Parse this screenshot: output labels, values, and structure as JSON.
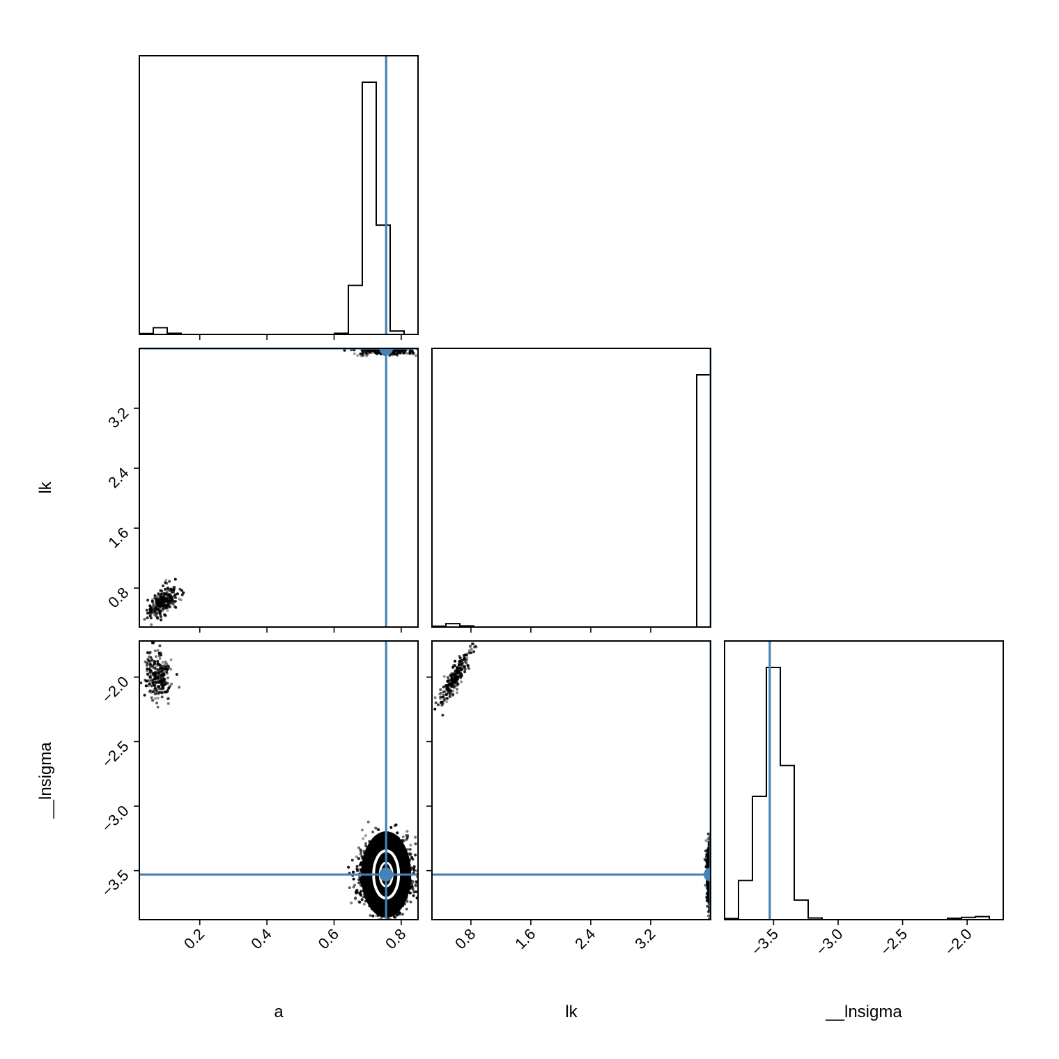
{
  "chart_data": {
    "type": "corner",
    "parameters": [
      "a",
      "lk",
      "__lnsigma"
    ],
    "truth_color": "#4682b4",
    "hist_color": "#000000",
    "truths": {
      "a": 0.755,
      "lk": 4.0,
      "__lnsigma": -3.53
    },
    "ranges": {
      "a": [
        0.02,
        0.85
      ],
      "lk": [
        0.28,
        4.0
      ],
      "__lnsigma": [
        -3.88,
        -1.72
      ]
    },
    "ticks": {
      "a": [
        0.2,
        0.4,
        0.6,
        0.8
      ],
      "lk": [
        0.8,
        1.6,
        2.4,
        3.2
      ],
      "__lnsigma": [
        -3.5,
        -3.0,
        -2.5,
        -2.0
      ]
    },
    "tick_labels": {
      "a": [
        "0.2",
        "0.4",
        "0.6",
        "0.8"
      ],
      "lk": [
        "0.8",
        "1.6",
        "2.4",
        "3.2"
      ],
      "__lnsigma": [
        "−3.5",
        "−3.0",
        "−2.5",
        "−2.0"
      ]
    },
    "axis_labels": {
      "a": "a",
      "lk": "lk",
      "__lnsigma": "__lnsigma"
    },
    "histograms": {
      "a": {
        "edges": [
          0.02,
          0.0615,
          0.103,
          0.1445,
          0.186,
          0.2275,
          0.269,
          0.3105,
          0.352,
          0.3935,
          0.435,
          0.4765,
          0.518,
          0.5595,
          0.601,
          0.6425,
          0.684,
          0.7255,
          0.767,
          0.8085,
          0.85
        ],
        "counts": [
          0.003,
          0.024,
          0.004,
          0,
          0,
          0,
          0,
          0,
          0,
          0,
          0,
          0,
          0,
          0,
          0.004,
          0.175,
          0.9,
          0.39,
          0.012,
          0
        ]
      },
      "lk": {
        "edges": [
          0.28,
          0.466,
          0.652,
          0.838,
          1.024,
          1.21,
          1.396,
          1.582,
          1.768,
          1.954,
          2.14,
          2.326,
          2.512,
          2.698,
          2.884,
          3.07,
          3.256,
          3.442,
          3.628,
          3.814,
          4.0
        ],
        "counts": [
          0.003,
          0.012,
          0.004,
          0,
          0,
          0,
          0,
          0,
          0,
          0,
          0,
          0,
          0,
          0,
          0,
          0,
          0,
          0,
          0,
          0.9
        ]
      },
      "__lnsigma": {
        "edges": [
          -3.88,
          -3.772,
          -3.664,
          -3.556,
          -3.448,
          -3.34,
          -3.232,
          -3.124,
          -3.016,
          -2.908,
          -2.8,
          -2.692,
          -2.584,
          -2.476,
          -2.368,
          -2.26,
          -2.152,
          -2.044,
          -1.936,
          -1.828,
          -1.72
        ],
        "counts": [
          0.004,
          0.14,
          0.44,
          0.9,
          0.55,
          0.07,
          0.006,
          0,
          0,
          0,
          0,
          0,
          0,
          0,
          0,
          0,
          0.005,
          0.008,
          0.011,
          0
        ]
      }
    },
    "sample_clusters": [
      {
        "pair": [
          "a",
          "lk"
        ],
        "center": [
          0.09,
          0.62
        ],
        "spread": [
          0.022,
          0.11
        ],
        "corr": 0.6,
        "n": 240
      },
      {
        "pair": [
          "a",
          "__lnsigma"
        ],
        "center": [
          0.075,
          -1.99
        ],
        "spread": [
          0.02,
          0.09
        ],
        "corr": -0.2,
        "n": 240
      },
      {
        "pair": [
          "a",
          "__lnsigma"
        ],
        "center": [
          0.755,
          -3.53
        ],
        "spread": [
          0.035,
          0.12
        ],
        "corr": 0.0,
        "n": 2600
      },
      {
        "pair": [
          "a",
          "lk"
        ],
        "center": [
          0.75,
          3.98
        ],
        "spread": [
          0.04,
          0.03
        ],
        "corr": 0.0,
        "n": 400
      },
      {
        "pair": [
          "lk",
          "__lnsigma"
        ],
        "center": [
          0.6,
          -1.99
        ],
        "spread": [
          0.1,
          0.1
        ],
        "corr": 0.85,
        "n": 240
      },
      {
        "pair": [
          "lk",
          "__lnsigma"
        ],
        "center": [
          3.99,
          -3.53
        ],
        "spread": [
          0.02,
          0.13
        ],
        "corr": 0.0,
        "n": 700
      }
    ]
  }
}
